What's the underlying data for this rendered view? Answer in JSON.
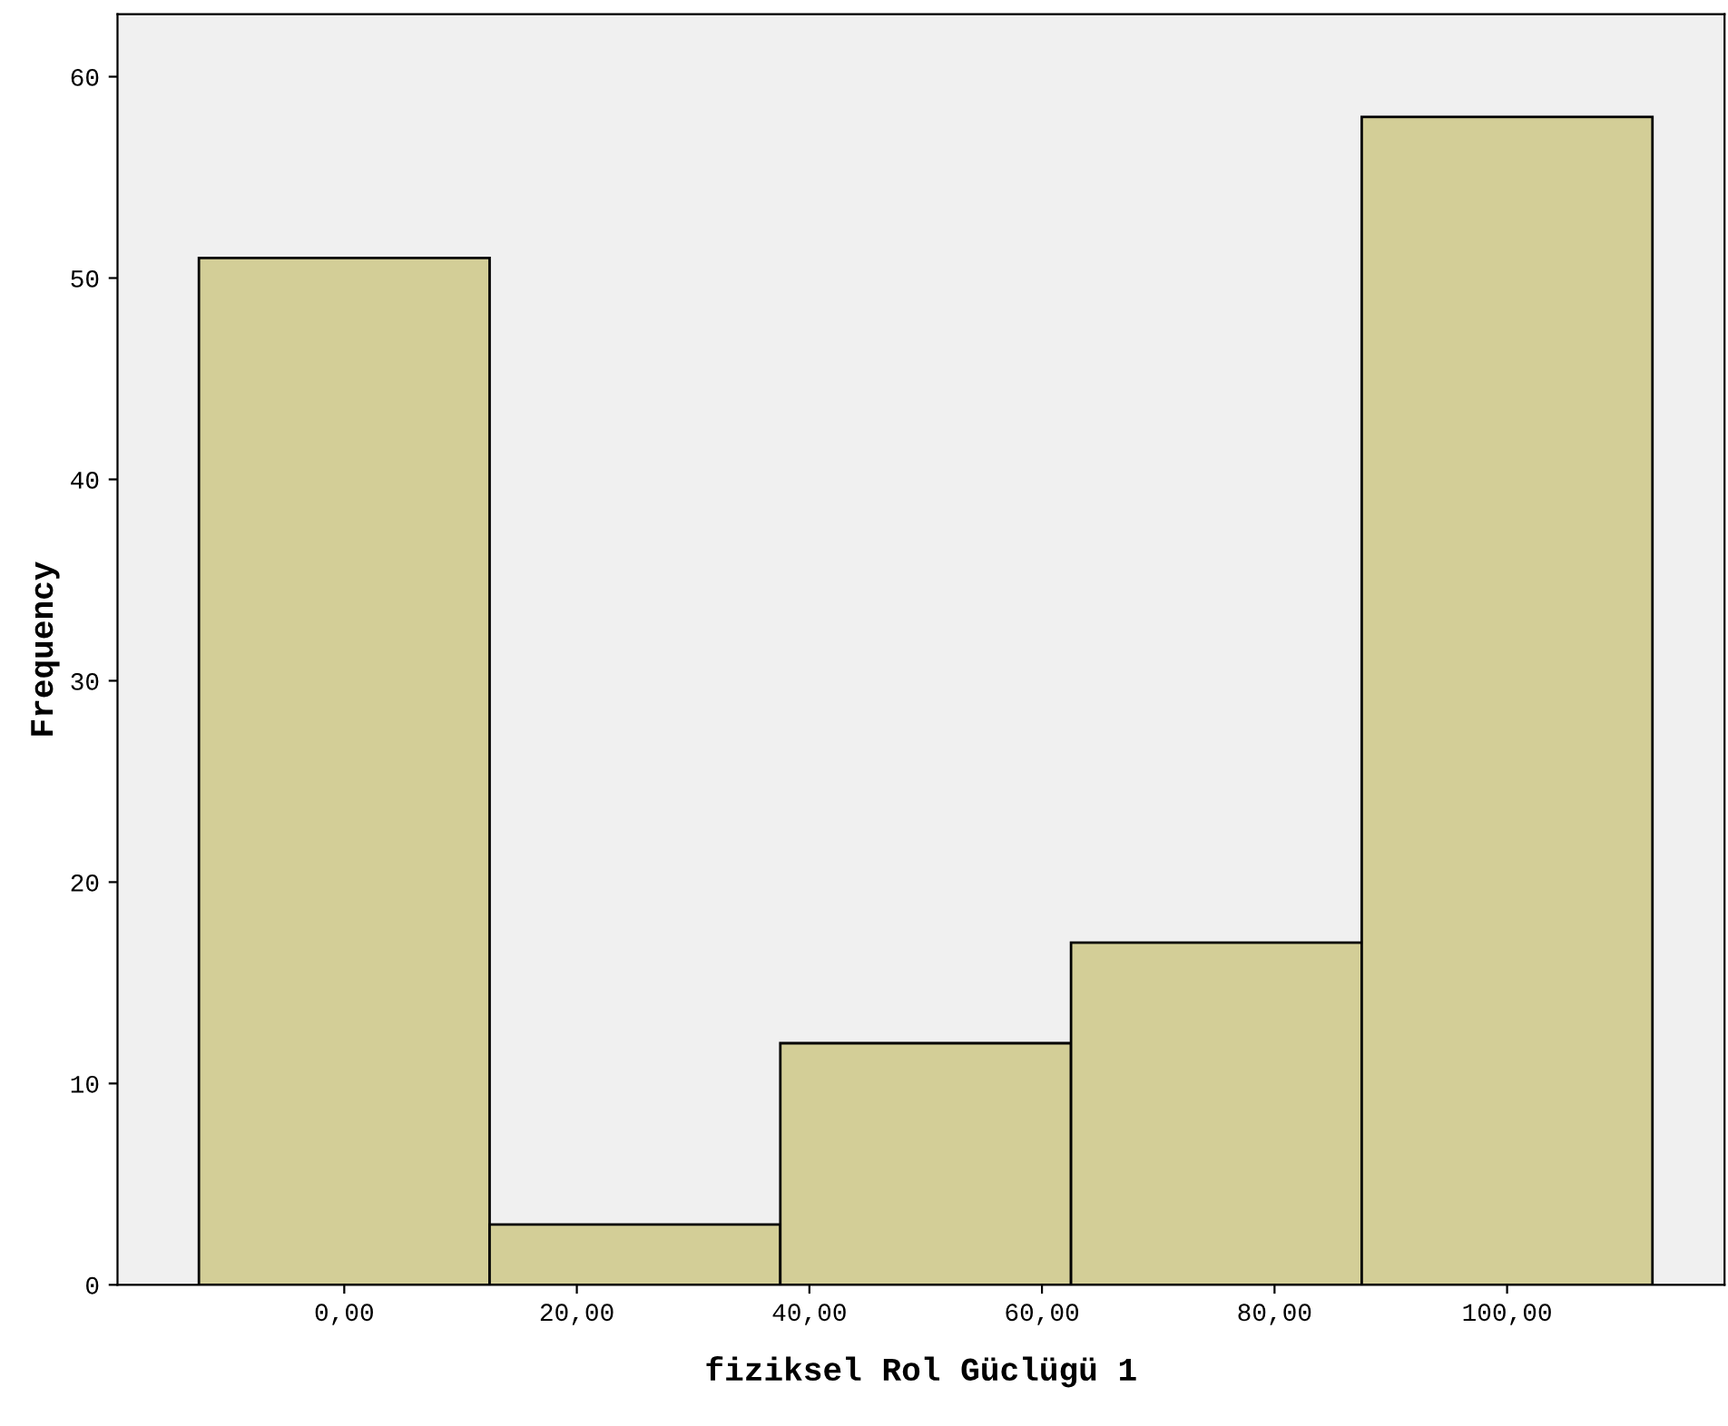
{
  "chart_data": {
    "type": "histogram",
    "xlabel": "fiziksel Rol Güclügü 1",
    "ylabel": "Frequency",
    "bins": [
      -12.5,
      12.5,
      37.5,
      62.5,
      87.5,
      112.5
    ],
    "values": [
      51,
      3,
      12,
      17,
      58
    ],
    "color": "#d3ce97",
    "xlim": [
      -19.5,
      118.7
    ],
    "ylim": [
      0,
      63.1
    ],
    "xticks": [
      {
        "value": 0,
        "label": "0,00"
      },
      {
        "value": 20,
        "label": "20,00"
      },
      {
        "value": 40,
        "label": "40,00"
      },
      {
        "value": 60,
        "label": "60,00"
      },
      {
        "value": 80,
        "label": "80,00"
      },
      {
        "value": 100,
        "label": "100,00"
      }
    ],
    "yticks": [
      0,
      10,
      20,
      30,
      40,
      50,
      60
    ],
    "grid": false,
    "legend": false
  }
}
